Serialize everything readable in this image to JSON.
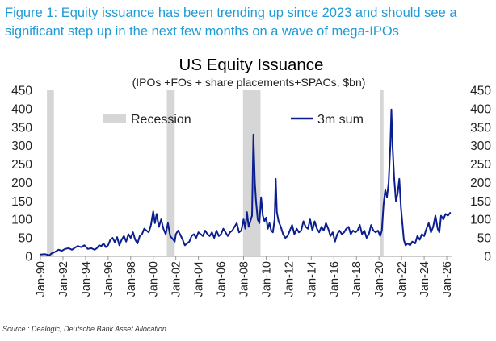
{
  "caption": "Figure 1: Equity issuance has been trending up since 2023 and should see a significant step up in the next few months on a wave of mega-IPOs",
  "source": "Source : Dealogic, Deutsche Bank Asset Allocation",
  "colors": {
    "caption": "#1f9bd6",
    "series": "#0b1e8f",
    "recession": "#d6d6d6"
  },
  "chart_data": {
    "type": "line",
    "title": "US Equity Issuance",
    "subtitle": "(IPOs +FOs + share placements+SPACs, $bn)",
    "ylim": [
      0,
      450
    ],
    "yticks": [
      0,
      50,
      100,
      150,
      200,
      250,
      300,
      350,
      400,
      450
    ],
    "y_axis_sides": "left and right",
    "xlim": [
      1990.0,
      2026.5
    ],
    "xtick_labels": [
      "Jan-90",
      "Jan-92",
      "Jan-94",
      "Jan-96",
      "Jan-98",
      "Jan-00",
      "Jan-02",
      "Jan-04",
      "Jan-06",
      "Jan-08",
      "Jan-10",
      "Jan-12",
      "Jan-14",
      "Jan-16",
      "Jan-18",
      "Jan-20",
      "Jan-22",
      "Jan-24",
      "Jan-26"
    ],
    "grid": false,
    "legend": {
      "placement": "top",
      "recession_label": "Recession",
      "series_label": "3m sum"
    },
    "recessions": [
      [
        1990.58,
        1991.2
      ],
      [
        2001.2,
        2001.9
      ],
      [
        2007.95,
        2009.5
      ],
      [
        2020.1,
        2020.4
      ]
    ],
    "series": [
      {
        "name": "3m sum",
        "points": [
          [
            1990.0,
            5
          ],
          [
            1990.4,
            6
          ],
          [
            1990.8,
            3
          ],
          [
            1991.0,
            8
          ],
          [
            1991.3,
            12
          ],
          [
            1991.6,
            18
          ],
          [
            1991.9,
            15
          ],
          [
            1992.2,
            20
          ],
          [
            1992.5,
            22
          ],
          [
            1992.8,
            18
          ],
          [
            1993.0,
            22
          ],
          [
            1993.3,
            28
          ],
          [
            1993.6,
            25
          ],
          [
            1993.9,
            30
          ],
          [
            1994.2,
            20
          ],
          [
            1994.5,
            22
          ],
          [
            1994.8,
            18
          ],
          [
            1995.0,
            22
          ],
          [
            1995.2,
            30
          ],
          [
            1995.4,
            28
          ],
          [
            1995.6,
            35
          ],
          [
            1995.8,
            25
          ],
          [
            1996.0,
            30
          ],
          [
            1996.2,
            45
          ],
          [
            1996.4,
            50
          ],
          [
            1996.6,
            38
          ],
          [
            1996.8,
            52
          ],
          [
            1997.0,
            30
          ],
          [
            1997.2,
            45
          ],
          [
            1997.4,
            55
          ],
          [
            1997.6,
            40
          ],
          [
            1997.8,
            60
          ],
          [
            1998.0,
            50
          ],
          [
            1998.2,
            65
          ],
          [
            1998.4,
            45
          ],
          [
            1998.6,
            35
          ],
          [
            1998.8,
            55
          ],
          [
            1999.0,
            60
          ],
          [
            1999.2,
            75
          ],
          [
            1999.4,
            70
          ],
          [
            1999.6,
            65
          ],
          [
            1999.8,
            85
          ],
          [
            2000.0,
            122
          ],
          [
            2000.15,
            90
          ],
          [
            2000.3,
            115
          ],
          [
            2000.5,
            80
          ],
          [
            2000.7,
            100
          ],
          [
            2000.9,
            75
          ],
          [
            2001.1,
            60
          ],
          [
            2001.3,
            90
          ],
          [
            2001.5,
            55
          ],
          [
            2001.7,
            48
          ],
          [
            2001.9,
            40
          ],
          [
            2002.0,
            60
          ],
          [
            2002.2,
            70
          ],
          [
            2002.4,
            58
          ],
          [
            2002.6,
            45
          ],
          [
            2002.8,
            30
          ],
          [
            2003.0,
            35
          ],
          [
            2003.2,
            40
          ],
          [
            2003.4,
            55
          ],
          [
            2003.6,
            60
          ],
          [
            2003.8,
            50
          ],
          [
            2004.0,
            65
          ],
          [
            2004.2,
            60
          ],
          [
            2004.4,
            55
          ],
          [
            2004.6,
            70
          ],
          [
            2004.8,
            60
          ],
          [
            2005.0,
            55
          ],
          [
            2005.2,
            65
          ],
          [
            2005.4,
            50
          ],
          [
            2005.6,
            70
          ],
          [
            2005.8,
            55
          ],
          [
            2006.0,
            60
          ],
          [
            2006.2,
            75
          ],
          [
            2006.4,
            65
          ],
          [
            2006.6,
            55
          ],
          [
            2006.8,
            65
          ],
          [
            2007.0,
            70
          ],
          [
            2007.2,
            80
          ],
          [
            2007.4,
            90
          ],
          [
            2007.6,
            65
          ],
          [
            2007.8,
            70
          ],
          [
            2008.0,
            100
          ],
          [
            2008.15,
            75
          ],
          [
            2008.3,
            120
          ],
          [
            2008.45,
            80
          ],
          [
            2008.6,
            95
          ],
          [
            2008.75,
            110
          ],
          [
            2008.87,
            330
          ],
          [
            2009.0,
            200
          ],
          [
            2009.1,
            150
          ],
          [
            2009.25,
            100
          ],
          [
            2009.4,
            90
          ],
          [
            2009.55,
            160
          ],
          [
            2009.7,
            110
          ],
          [
            2009.85,
            95
          ],
          [
            2010.0,
            105
          ],
          [
            2010.15,
            75
          ],
          [
            2010.3,
            90
          ],
          [
            2010.45,
            70
          ],
          [
            2010.6,
            65
          ],
          [
            2010.75,
            100
          ],
          [
            2010.85,
            210
          ],
          [
            2010.95,
            120
          ],
          [
            2011.1,
            95
          ],
          [
            2011.3,
            80
          ],
          [
            2011.5,
            60
          ],
          [
            2011.7,
            50
          ],
          [
            2011.9,
            55
          ],
          [
            2012.1,
            70
          ],
          [
            2012.3,
            85
          ],
          [
            2012.5,
            60
          ],
          [
            2012.7,
            75
          ],
          [
            2012.9,
            65
          ],
          [
            2013.1,
            70
          ],
          [
            2013.3,
            95
          ],
          [
            2013.5,
            80
          ],
          [
            2013.7,
            75
          ],
          [
            2013.9,
            100
          ],
          [
            2014.1,
            70
          ],
          [
            2014.3,
            95
          ],
          [
            2014.5,
            75
          ],
          [
            2014.7,
            65
          ],
          [
            2014.9,
            80
          ],
          [
            2015.1,
            70
          ],
          [
            2015.3,
            90
          ],
          [
            2015.5,
            75
          ],
          [
            2015.7,
            55
          ],
          [
            2015.9,
            65
          ],
          [
            2016.1,
            40
          ],
          [
            2016.3,
            60
          ],
          [
            2016.5,
            70
          ],
          [
            2016.7,
            60
          ],
          [
            2016.9,
            65
          ],
          [
            2017.1,
            75
          ],
          [
            2017.3,
            80
          ],
          [
            2017.5,
            60
          ],
          [
            2017.7,
            70
          ],
          [
            2017.9,
            65
          ],
          [
            2018.1,
            70
          ],
          [
            2018.3,
            85
          ],
          [
            2018.5,
            60
          ],
          [
            2018.7,
            70
          ],
          [
            2018.9,
            50
          ],
          [
            2019.1,
            60
          ],
          [
            2019.3,
            85
          ],
          [
            2019.5,
            70
          ],
          [
            2019.7,
            65
          ],
          [
            2019.9,
            70
          ],
          [
            2020.1,
            55
          ],
          [
            2020.25,
            70
          ],
          [
            2020.4,
            140
          ],
          [
            2020.55,
            180
          ],
          [
            2020.7,
            160
          ],
          [
            2020.85,
            200
          ],
          [
            2021.0,
            300
          ],
          [
            2021.1,
            398
          ],
          [
            2021.2,
            300
          ],
          [
            2021.35,
            210
          ],
          [
            2021.5,
            150
          ],
          [
            2021.65,
            170
          ],
          [
            2021.8,
            210
          ],
          [
            2021.95,
            130
          ],
          [
            2022.1,
            80
          ],
          [
            2022.2,
            45
          ],
          [
            2022.35,
            30
          ],
          [
            2022.55,
            35
          ],
          [
            2022.75,
            30
          ],
          [
            2022.95,
            40
          ],
          [
            2023.2,
            35
          ],
          [
            2023.4,
            55
          ],
          [
            2023.6,
            45
          ],
          [
            2023.8,
            60
          ],
          [
            2024.0,
            55
          ],
          [
            2024.2,
            75
          ],
          [
            2024.4,
            90
          ],
          [
            2024.6,
            65
          ],
          [
            2024.8,
            80
          ],
          [
            2025.0,
            110
          ],
          [
            2025.2,
            75
          ],
          [
            2025.35,
            65
          ],
          [
            2025.5,
            110
          ],
          [
            2025.7,
            100
          ],
          [
            2025.9,
            115
          ],
          [
            2026.1,
            110
          ],
          [
            2026.3,
            118
          ]
        ]
      }
    ]
  }
}
